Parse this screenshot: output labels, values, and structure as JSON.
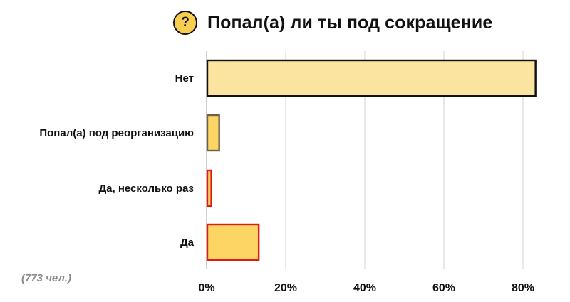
{
  "title": "Попал(а) ли ты под сокращение",
  "badge": "?",
  "footnote": "(773 чел.)",
  "colors": {
    "bar_light": "#fbe3a0",
    "bar_medium": "#fcd565",
    "bar_mid": "#f9cd4f",
    "edge_dark": "#111111",
    "edge_gray": "#6d6249",
    "edge_red": "#e11b13",
    "grid": "#d9d9d9"
  },
  "chart_data": {
    "type": "bar",
    "orientation": "horizontal",
    "title": "Попал(а) ли ты под сокращение",
    "categories": [
      "Нет",
      "Попал(а) под реорганизацию",
      "Да, несколько раз",
      "Да"
    ],
    "values": [
      83,
      3,
      1,
      13
    ],
    "unit": "%",
    "xlim": [
      0,
      85
    ],
    "xticks": [
      0,
      20,
      40,
      60,
      80
    ],
    "xtick_labels": [
      "0%",
      "20%",
      "40%",
      "60%",
      "80%"
    ],
    "grid": "vertical",
    "bar_styles": [
      {
        "fill": "#fbe3a0",
        "stroke": "#111111"
      },
      {
        "fill": "#fcd565",
        "stroke": "#6d6249"
      },
      {
        "fill": "#fcd565",
        "stroke": "#e11b13"
      },
      {
        "fill": "#fcd565",
        "stroke": "#e11b13"
      }
    ]
  }
}
